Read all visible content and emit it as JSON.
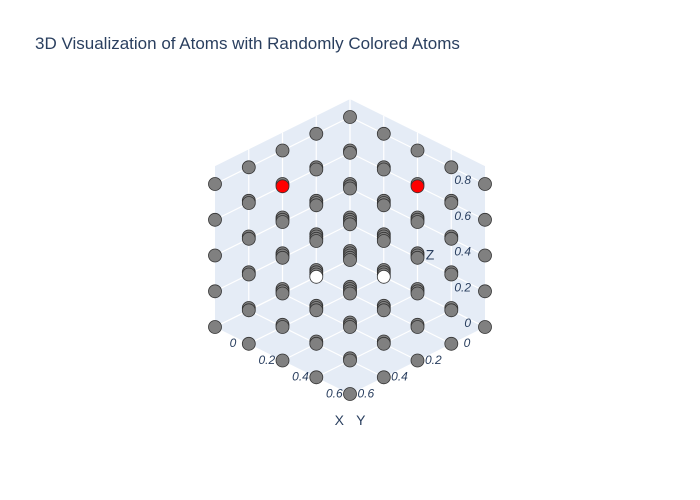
{
  "chart_data": {
    "type": "scatter3d",
    "title": "3D Visualization of Atoms with Randomly Colored Atoms",
    "axes": {
      "x": {
        "label": "X",
        "ticks": [
          "0",
          "0.2",
          "0.4",
          "0.6"
        ],
        "range": [
          0,
          0.8
        ]
      },
      "y": {
        "label": "Y",
        "ticks": [
          "0",
          "0.2",
          "0.4",
          "0.6"
        ],
        "range": [
          0,
          0.8
        ]
      },
      "z": {
        "label": "Z",
        "ticks": [
          "0",
          "0.2",
          "0.4",
          "0.6",
          "0.8"
        ],
        "range": [
          0,
          0.9
        ]
      }
    },
    "lattice": {
      "x_values": [
        0,
        0.2,
        0.4,
        0.6,
        0.8
      ],
      "y_values": [
        0,
        0.2,
        0.4,
        0.6,
        0.8
      ],
      "z_values": [
        0,
        0.2,
        0.4,
        0.6,
        0.8
      ]
    },
    "colors": {
      "default": "#808080",
      "highlight_red": "#ff0000",
      "highlight_white": "#ffffff",
      "pane": "#e5ecf6",
      "grid": "#ffffff",
      "text": "#2a3f5f"
    },
    "highlighted_atoms": [
      {
        "x": 0.4,
        "y": 0.0,
        "z": 0.6,
        "color": "#ff0000"
      },
      {
        "x": 0.0,
        "y": 0.4,
        "z": 0.6,
        "color": "#ff0000"
      },
      {
        "x": 0.2,
        "y": 0.0,
        "z": 0.0,
        "color": "#ffffff"
      },
      {
        "x": 0.0,
        "y": 0.2,
        "z": 0.0,
        "color": "#ffffff"
      }
    ],
    "grid": true
  }
}
